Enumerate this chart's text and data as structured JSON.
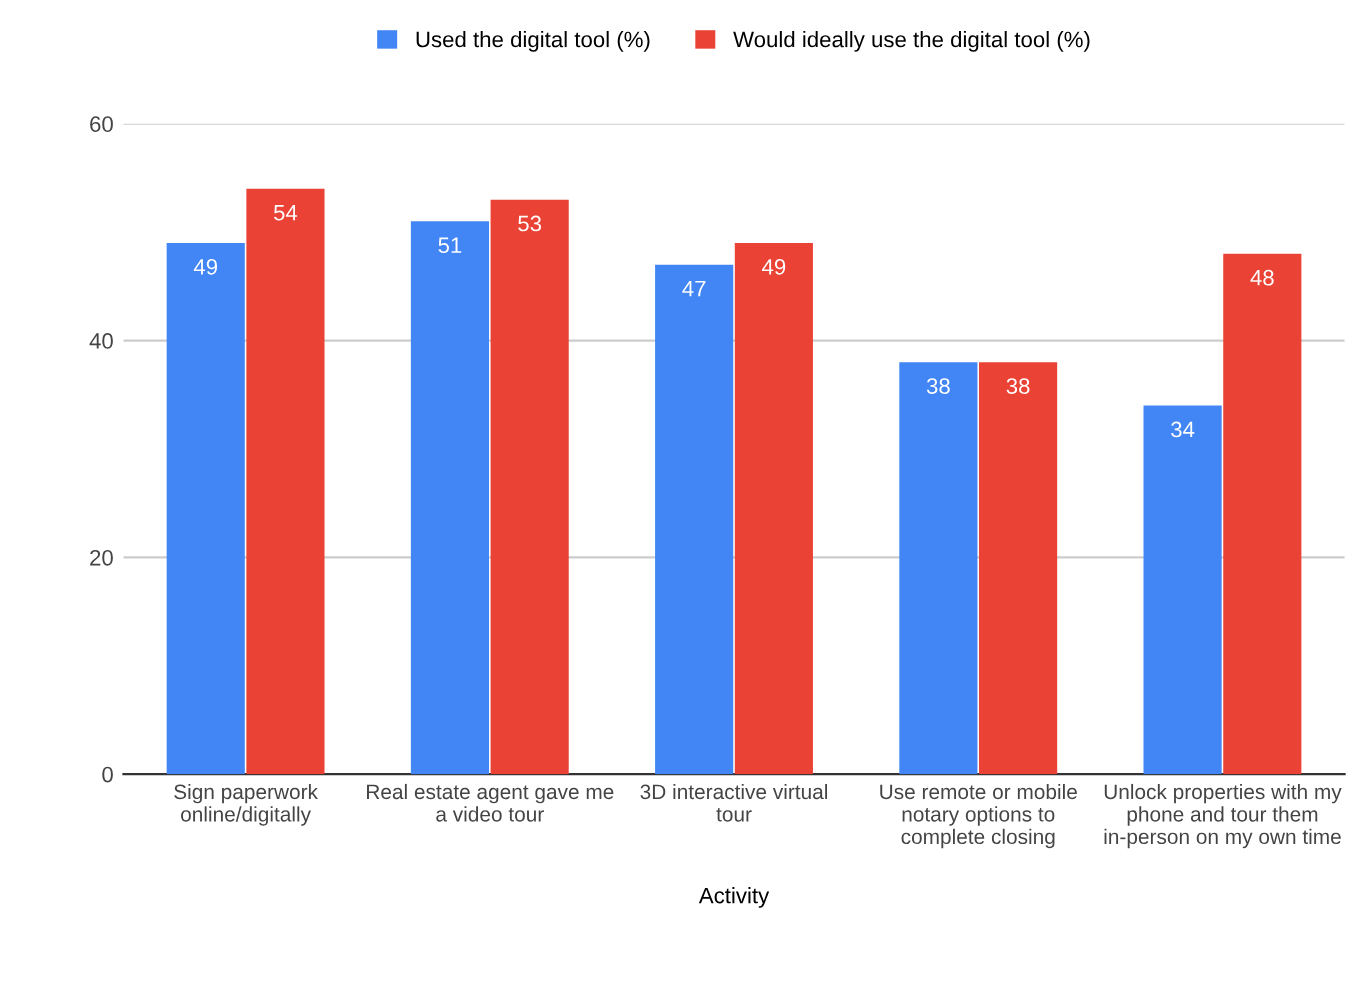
{
  "chart_data": {
    "type": "bar",
    "xlabel": "Activity",
    "categories": [
      "Sign paperwork online/digitally",
      "Real estate agent gave me a video tour",
      "3D interactive virtual tour",
      "Use remote or mobile notary options to complete closing",
      "Unlock properties with my phone and tour them in-person on my own time"
    ],
    "series": [
      {
        "name": "Used the digital tool (%)",
        "color": "#4285f4",
        "values": [
          49,
          51,
          47,
          38,
          34
        ]
      },
      {
        "name": "Would ideally use the digital tool (%)",
        "color": "#ea4335",
        "values": [
          54,
          53,
          49,
          38,
          48
        ]
      }
    ],
    "ylim": [
      0,
      60
    ],
    "yticks": [
      0,
      20,
      40,
      60
    ],
    "grid": "y",
    "legend": "top",
    "data_labels": true
  }
}
